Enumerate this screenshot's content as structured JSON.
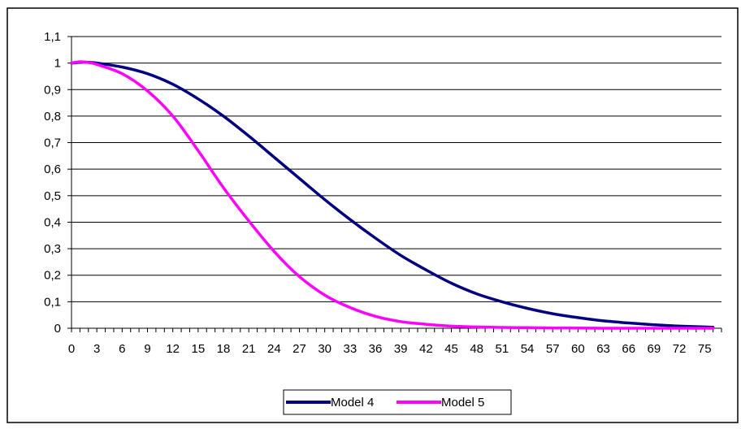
{
  "chart_data": {
    "type": "line",
    "title": "",
    "xlabel": "",
    "ylabel": "",
    "x_ticks": [
      0,
      3,
      6,
      9,
      12,
      15,
      18,
      21,
      24,
      27,
      30,
      33,
      36,
      39,
      42,
      45,
      48,
      51,
      54,
      57,
      60,
      63,
      66,
      69,
      72,
      75
    ],
    "x_tick_labels": [
      "0",
      "3",
      "6",
      "9",
      "12",
      "15",
      "18",
      "21",
      "24",
      "27",
      "30",
      "33",
      "36",
      "39",
      "42",
      "45",
      "48",
      "51",
      "54",
      "57",
      "60",
      "63",
      "66",
      "69",
      "72",
      "75"
    ],
    "xlim": [
      0,
      77
    ],
    "ylim": [
      0,
      1.1
    ],
    "y_ticks": [
      0,
      0.1,
      0.2,
      0.3,
      0.4,
      0.5,
      0.6,
      0.7,
      0.8,
      0.9,
      1,
      1.1
    ],
    "y_tick_labels": [
      "0",
      "0,1",
      "0,2",
      "0,3",
      "0,4",
      "0,5",
      "0,6",
      "0,7",
      "0,8",
      "0,9",
      "1",
      "1,1"
    ],
    "grid": "horizontal",
    "legend_position": "bottom",
    "series": [
      {
        "name": "Model 4",
        "color": "#000080",
        "x": [
          0,
          1,
          2,
          3,
          6,
          9,
          12,
          15,
          18,
          21,
          24,
          27,
          30,
          33,
          36,
          39,
          42,
          45,
          48,
          51,
          54,
          57,
          60,
          63,
          66,
          69,
          72,
          75,
          76
        ],
        "values": [
          1.0,
          1.003,
          1.003,
          1.0,
          0.985,
          0.96,
          0.92,
          0.865,
          0.8,
          0.725,
          0.645,
          0.565,
          0.485,
          0.41,
          0.34,
          0.275,
          0.22,
          0.17,
          0.13,
          0.1,
          0.075,
          0.055,
          0.04,
          0.028,
          0.02,
          0.013,
          0.008,
          0.005,
          0.004
        ]
      },
      {
        "name": "Model 5",
        "color": "#ff00ff",
        "x": [
          0,
          1,
          2,
          3,
          6,
          9,
          12,
          15,
          18,
          21,
          24,
          27,
          30,
          33,
          36,
          39,
          42,
          45,
          48,
          51,
          54,
          57,
          60,
          63,
          66,
          69,
          72,
          75,
          76
        ],
        "values": [
          1.0,
          1.005,
          1.002,
          0.995,
          0.96,
          0.895,
          0.8,
          0.67,
          0.53,
          0.405,
          0.29,
          0.195,
          0.125,
          0.078,
          0.045,
          0.025,
          0.015,
          0.008,
          0.005,
          0.003,
          0.002,
          0.001,
          0.001,
          0.0,
          0.0,
          0.0,
          0.0,
          0.0,
          0.0
        ]
      }
    ]
  }
}
